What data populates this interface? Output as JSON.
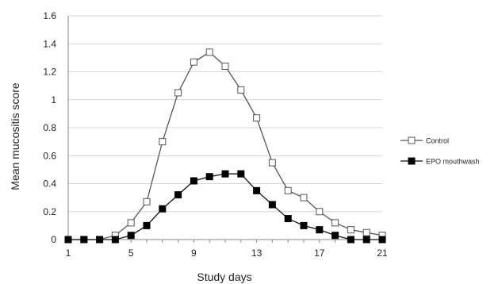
{
  "chart_data": {
    "type": "line",
    "xlabel": "Study days",
    "ylabel": "Mean mucositis score",
    "xlim": [
      1,
      21
    ],
    "ylim": [
      0,
      1.6
    ],
    "x_ticks": [
      "1",
      "5",
      "9",
      "13",
      "17",
      "21"
    ],
    "y_ticks": [
      "0",
      "0.2",
      "0.4",
      "0.6",
      "0.8",
      "1",
      "1.2",
      "1.4",
      "1.6"
    ],
    "grid": "horizontal",
    "legend_position": "right",
    "x": [
      1,
      2,
      3,
      4,
      5,
      6,
      7,
      8,
      9,
      10,
      11,
      12,
      13,
      14,
      15,
      16,
      17,
      18,
      19,
      20,
      21
    ],
    "series": [
      {
        "name": "Control",
        "marker": "open-square",
        "color": "#555555",
        "values": [
          0,
          0,
          0,
          0.03,
          0.12,
          0.27,
          0.7,
          1.05,
          1.27,
          1.34,
          1.24,
          1.07,
          0.87,
          0.55,
          0.35,
          0.3,
          0.2,
          0.12,
          0.07,
          0.05,
          0.03
        ]
      },
      {
        "name": "EPO mouthwash",
        "marker": "filled-square",
        "color": "#111111",
        "values": [
          0,
          0,
          0,
          0,
          0.03,
          0.1,
          0.22,
          0.32,
          0.42,
          0.45,
          0.47,
          0.47,
          0.35,
          0.25,
          0.15,
          0.1,
          0.07,
          0.03,
          0,
          0,
          0
        ]
      }
    ]
  }
}
